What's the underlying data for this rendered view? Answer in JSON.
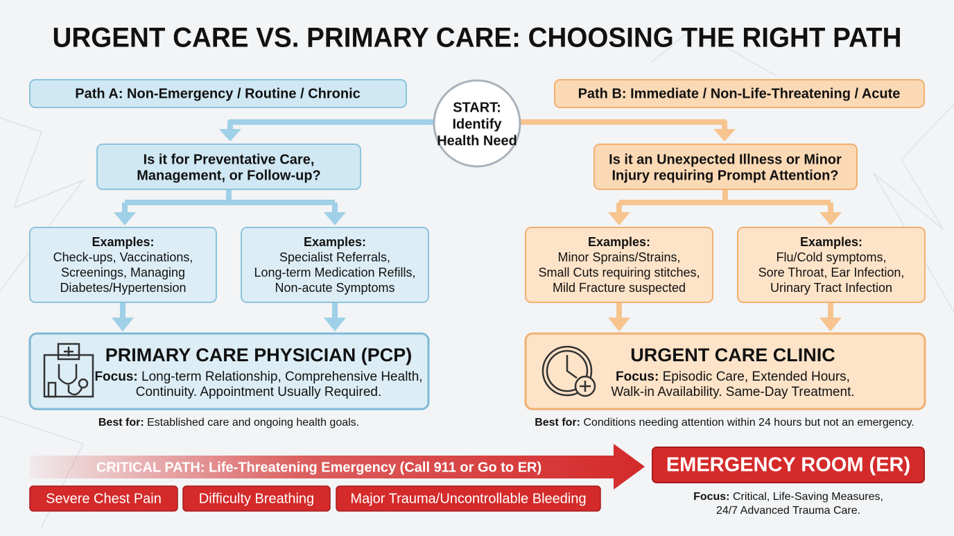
{
  "title": "URGENT CARE VS. PRIMARY CARE: CHOOSING THE RIGHT PATH",
  "start": {
    "lines": [
      "START:",
      "Identify",
      "Health Need"
    ]
  },
  "path_a": {
    "header": "Path A: Non-Emergency / Routine / Chronic",
    "question": [
      "Is it for Preventative Care,",
      "Management, or Follow-up?"
    ],
    "examples": [
      {
        "heading": "Examples:",
        "lines": [
          "Check-ups, Vaccinations,",
          "Screenings, Managing",
          "Diabetes/Hypertension"
        ]
      },
      {
        "heading": "Examples:",
        "lines": [
          "Specialist Referrals,",
          "Long-term Medication Refills,",
          "Non-acute Symptoms"
        ]
      }
    ],
    "destination": {
      "title": "PRIMARY CARE PHYSICIAN (PCP)",
      "focus_label": "Focus:",
      "focus_lines": [
        "Long-term Relationship, Comprehensive Health,",
        "Continuity. Appointment Usually Required."
      ]
    },
    "best_for": {
      "label": "Best for:",
      "text": "Established care and ongoing health goals."
    }
  },
  "path_b": {
    "header": "Path B: Immediate / Non-Life-Threatening / Acute",
    "question": [
      "Is it an Unexpected Illness or Minor",
      "Injury requiring Prompt Attention?"
    ],
    "examples": [
      {
        "heading": "Examples:",
        "lines": [
          "Minor Sprains/Strains,",
          "Small Cuts requiring stitches,",
          "Mild Fracture suspected"
        ]
      },
      {
        "heading": "Examples:",
        "lines": [
          "Flu/Cold symptoms,",
          "Sore Throat, Ear Infection,",
          "Urinary Tract Infection"
        ]
      }
    ],
    "destination": {
      "title": "URGENT CARE CLINIC",
      "focus_label": "Focus:",
      "focus_lines": [
        "Episodic Care, Extended Hours,",
        "Walk-in Availability. Same-Day Treatment."
      ]
    },
    "best_for": {
      "label": "Best for:",
      "text": "Conditions needing attention within 24 hours but not an emergency."
    }
  },
  "critical": {
    "banner": "CRITICAL PATH: Life-Threatening Emergency (Call 911 or Go to ER)",
    "symptoms": [
      "Severe Chest Pain",
      "Difficulty Breathing",
      "Major Trauma/Uncontrollable Bleeding"
    ],
    "destination": {
      "title": "EMERGENCY ROOM (ER)",
      "focus_label": "Focus:",
      "focus_lines": [
        "Critical, Life-Saving Measures,",
        "24/7 Advanced Trauma Care."
      ]
    }
  }
}
